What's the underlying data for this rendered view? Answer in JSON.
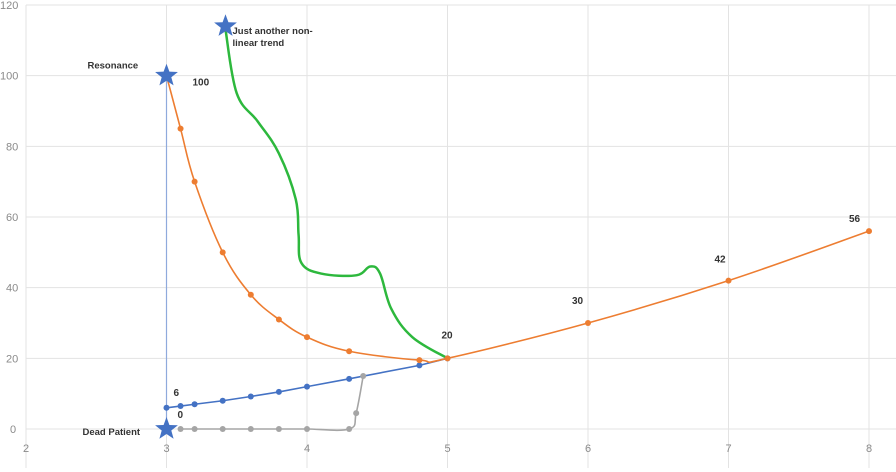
{
  "chart_data": {
    "type": "line",
    "xlim": [
      2,
      8
    ],
    "ylim": [
      0,
      120
    ],
    "x_ticks": [
      "2",
      "3",
      "4",
      "5",
      "6",
      "7",
      "8"
    ],
    "y_ticks": [
      "0",
      "20",
      "40",
      "60",
      "80",
      "100",
      "120"
    ],
    "grid": true,
    "legend": "none",
    "series": [
      {
        "color": "#4472c4",
        "smooth": false,
        "marker": true,
        "x": [
          3,
          3.1,
          3.2,
          3.4,
          3.6,
          3.8,
          4,
          4.3,
          4.8,
          5
        ],
        "y": [
          6,
          6.5,
          7,
          8,
          9.2,
          10.5,
          12,
          14.2,
          18,
          20
        ]
      },
      {
        "color": "#a5a5a5",
        "smooth": true,
        "marker": true,
        "x": [
          3.1,
          3.2,
          3.4,
          3.6,
          3.8,
          4,
          4.3,
          4.35,
          4.4
        ],
        "y": [
          0,
          0,
          0,
          0,
          0,
          0,
          0,
          4.5,
          15
        ]
      },
      {
        "color": "#ed7d31",
        "smooth": true,
        "marker": true,
        "x": [
          3,
          3.1,
          3.2,
          3.4,
          3.6,
          3.8,
          4,
          4.3,
          4.8,
          5,
          6,
          7,
          8
        ],
        "y": [
          100,
          85,
          70,
          50,
          38,
          31,
          26,
          22,
          19.5,
          20,
          30,
          42,
          56
        ]
      },
      {
        "color": "#2db83d",
        "smooth": true,
        "marker": false,
        "x": [
          3.42,
          3.5,
          3.65,
          3.8,
          3.92,
          3.94,
          3.96,
          4.1,
          4.35,
          4.45,
          4.52,
          4.6,
          4.75,
          5
        ],
        "y": [
          113,
          95,
          87,
          78,
          65,
          55,
          47,
          44,
          43.5,
          46,
          44,
          34,
          26,
          20
        ]
      },
      {
        "color": "#8faadc",
        "smooth": false,
        "marker": false,
        "x": [
          3,
          3
        ],
        "y": [
          0,
          100
        ]
      }
    ],
    "stars": [
      {
        "x": 3,
        "y": 100,
        "color": "#4472c4"
      },
      {
        "x": 3,
        "y": 0,
        "color": "#4472c4"
      },
      {
        "x": 3.42,
        "y": 114,
        "color": "#4472c4"
      }
    ],
    "annotations": [
      {
        "text": "Resonance",
        "x": 3,
        "y": 100
      },
      {
        "text": "Just another non-",
        "x": 3.42,
        "y": 114
      },
      {
        "text": "linear trend",
        "x": 3.42,
        "y": 114
      },
      {
        "text": "Dead Patient",
        "x": 3,
        "y": 0
      }
    ],
    "data_labels": [
      {
        "text": "100",
        "x": 3,
        "y": 100
      },
      {
        "text": "6",
        "x": 3,
        "y": 6
      },
      {
        "text": "0",
        "x": 3,
        "y": 0
      },
      {
        "text": "20",
        "x": 5,
        "y": 20
      },
      {
        "text": "30",
        "x": 6,
        "y": 30
      },
      {
        "text": "42",
        "x": 7,
        "y": 42
      },
      {
        "text": "56",
        "x": 8,
        "y": 56
      }
    ]
  }
}
